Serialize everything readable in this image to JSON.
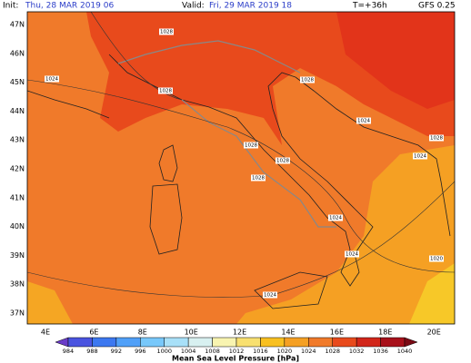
{
  "header": {
    "init_label": "Init:",
    "init_value": "Thu, 28 MAR 2019  06",
    "valid_label": "Valid:",
    "valid_value": "Fri, 29 MAR 2019  18",
    "step": "T=+36h",
    "model": "GFS 0.25"
  },
  "lat_labels": [
    "47N",
    "46N",
    "45N",
    "44N",
    "43N",
    "42N",
    "41N",
    "40N",
    "39N",
    "38N",
    "37N"
  ],
  "lon_labels": [
    "4E",
    "6E",
    "8E",
    "10E",
    "12E",
    "14E",
    "16E",
    "18E",
    "20E"
  ],
  "isobar_labels": [
    "1028",
    "1028",
    "1024",
    "1028",
    "1024",
    "1028",
    "1028",
    "1028",
    "1028",
    "1024",
    "1024",
    "1024",
    "1020",
    "1024"
  ],
  "colorbar": {
    "labels": [
      "984",
      "988",
      "992",
      "996",
      "1000",
      "1004",
      "1008",
      "1012",
      "1016",
      "1020",
      "1024",
      "1028",
      "1032",
      "1036",
      "1040"
    ],
    "title": "Mean Sea Level Pressure [hPa]"
  }
}
